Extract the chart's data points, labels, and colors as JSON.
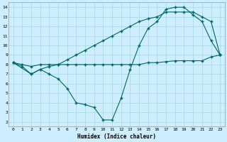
{
  "title": "",
  "xlabel": "Humidex (Indice chaleur)",
  "bg_color": "#cceeff",
  "grid_color": "#aadddd",
  "line_color": "#006666",
  "xlim": [
    -0.5,
    23.5
  ],
  "ylim": [
    1.5,
    14.5
  ],
  "xticks": [
    0,
    1,
    2,
    3,
    4,
    5,
    6,
    7,
    8,
    9,
    10,
    11,
    12,
    13,
    14,
    15,
    16,
    17,
    18,
    19,
    20,
    21,
    22,
    23
  ],
  "yticks": [
    2,
    3,
    4,
    5,
    6,
    7,
    8,
    9,
    10,
    11,
    12,
    13,
    14
  ],
  "line1_x": [
    0,
    1,
    2,
    3,
    4,
    5,
    6,
    7,
    8,
    9,
    10,
    11,
    12,
    13,
    14,
    15,
    16,
    17,
    18,
    19,
    20,
    21,
    22,
    23
  ],
  "line1_y": [
    8.2,
    8.0,
    7.8,
    8.0,
    8.0,
    8.0,
    8.0,
    8.0,
    8.0,
    8.0,
    8.0,
    8.0,
    8.0,
    8.0,
    8.0,
    8.2,
    8.2,
    8.3,
    8.4,
    8.4,
    8.4,
    8.4,
    8.8,
    9.0
  ],
  "line2_x": [
    0,
    1,
    2,
    3,
    4,
    5,
    6,
    7,
    8,
    9,
    10,
    11,
    12,
    13,
    14,
    15,
    16,
    17,
    18,
    19,
    20,
    21,
    22,
    23
  ],
  "line2_y": [
    8.2,
    7.8,
    7.0,
    7.5,
    7.0,
    6.5,
    5.5,
    4.0,
    3.8,
    3.5,
    2.2,
    2.2,
    4.5,
    7.5,
    10.0,
    11.8,
    12.5,
    13.8,
    14.0,
    14.0,
    13.2,
    12.5,
    10.5,
    9.0
  ],
  "line3_x": [
    0,
    2,
    3,
    4,
    5,
    6,
    7,
    8,
    9,
    10,
    11,
    12,
    13,
    14,
    15,
    16,
    17,
    18,
    19,
    20,
    21,
    22,
    23
  ],
  "line3_y": [
    8.2,
    7.0,
    7.5,
    7.8,
    8.0,
    8.5,
    9.0,
    9.5,
    10.0,
    10.5,
    11.0,
    11.5,
    12.0,
    12.5,
    12.8,
    13.0,
    13.5,
    13.5,
    13.5,
    13.5,
    13.0,
    12.5,
    9.0
  ]
}
